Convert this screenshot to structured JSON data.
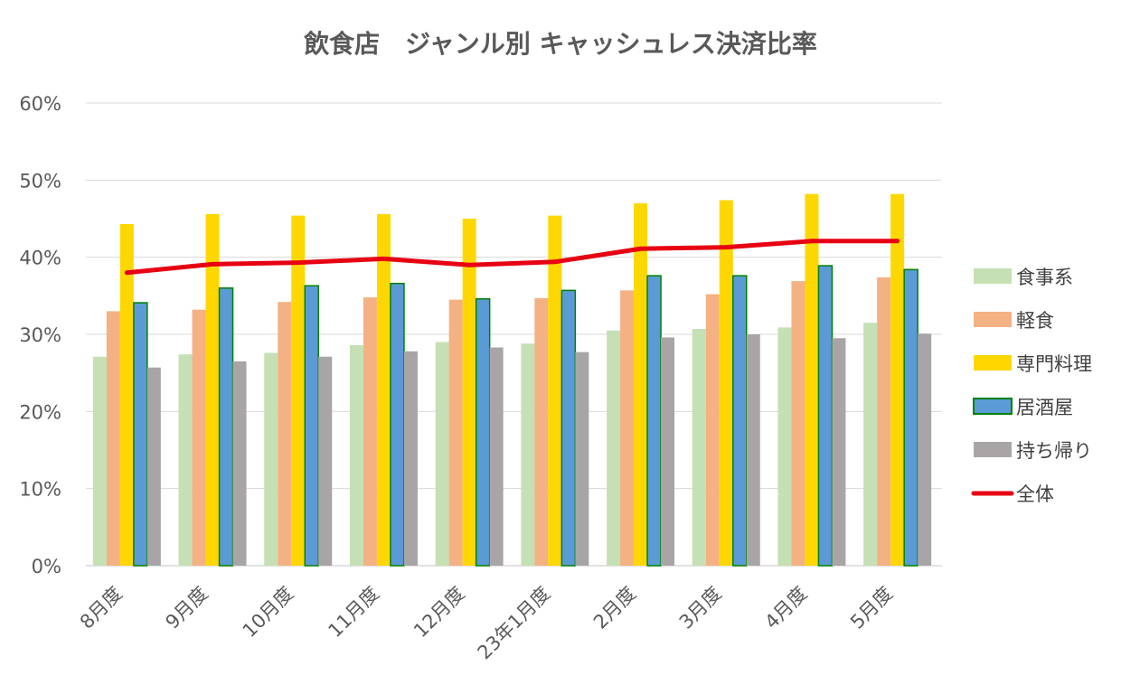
{
  "chart_data": {
    "type": "bar",
    "title": "飲食店　ジャンル別 キャッシュレス決済比率",
    "categories": [
      "8月度",
      "9月度",
      "10月度",
      "11月度",
      "12月度",
      "23年1月度",
      "2月度",
      "3月度",
      "4月度",
      "5月度"
    ],
    "ylim": [
      0,
      60
    ],
    "yticks": [
      0,
      10,
      20,
      30,
      40,
      50,
      60
    ],
    "ytick_labels": [
      "0%",
      "10%",
      "20%",
      "30%",
      "40%",
      "50%",
      "60%"
    ],
    "grid": true,
    "legend_position": "right",
    "series": [
      {
        "name": "食事系",
        "kind": "bar",
        "color": "#C5E0B4",
        "values": [
          27.1,
          27.4,
          27.6,
          28.6,
          29.0,
          28.8,
          30.5,
          30.7,
          30.9,
          31.5
        ]
      },
      {
        "name": "軽食",
        "kind": "bar",
        "color": "#F4B183",
        "values": [
          33.0,
          33.2,
          34.2,
          34.8,
          34.5,
          34.7,
          35.7,
          35.2,
          36.9,
          37.4
        ]
      },
      {
        "name": "専門料理",
        "kind": "bar",
        "color": "#FFD700",
        "values": [
          44.3,
          45.6,
          45.4,
          45.6,
          45.0,
          45.4,
          47.0,
          47.4,
          48.2,
          48.2
        ]
      },
      {
        "name": "居酒屋",
        "kind": "bar",
        "color": "#5B9BD5",
        "stroke": "#008000",
        "values": [
          34.1,
          36.0,
          36.3,
          36.6,
          34.6,
          35.7,
          37.6,
          37.6,
          38.9,
          38.4
        ]
      },
      {
        "name": "持ち帰り",
        "kind": "bar",
        "color": "#A9A5A7",
        "values": [
          25.7,
          26.5,
          27.1,
          27.8,
          28.3,
          27.7,
          29.6,
          30.0,
          29.5,
          30.1
        ]
      },
      {
        "name": "全体",
        "kind": "line",
        "color": "#E60012",
        "values": [
          38.0,
          39.1,
          39.3,
          39.8,
          39.0,
          39.4,
          41.1,
          41.3,
          42.1,
          42.1
        ]
      }
    ]
  }
}
